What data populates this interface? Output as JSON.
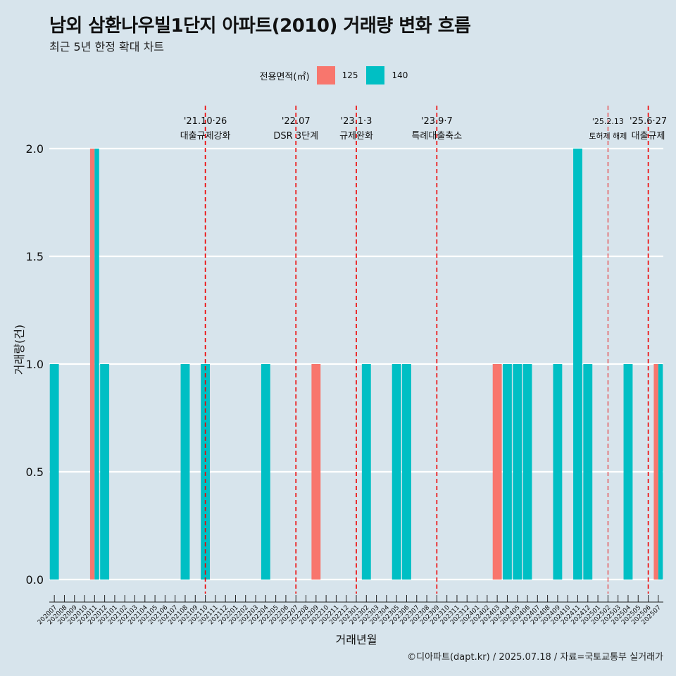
{
  "title": "남외 삼환나우빌1단지 아파트(2010) 거래량 변화 흐름",
  "subtitle": "최근 5년 한정 확대 차트",
  "caption": "©디아파트(dapt.kr) / 2025.07.18 / 자료=국토교통부 실거래가",
  "legend": {
    "title": "전용면적(㎡)",
    "items": [
      {
        "label": "125",
        "color": "#f8766d"
      },
      {
        "label": "140",
        "color": "#00bfc4"
      }
    ]
  },
  "chart_data": {
    "type": "bar",
    "title": "남외 삼환나우빌1단지 아파트(2010) 거래량 변화 흐름",
    "subtitle": "최근 5년 한정 확대 차트",
    "xlabel": "거래년월",
    "ylabel": "거래량(건)",
    "ylim": [
      0,
      2.0
    ],
    "yticks": [
      0.0,
      0.5,
      1.0,
      1.5,
      2.0
    ],
    "grid": "horizontal",
    "legend_position": "top",
    "categories": [
      "202007",
      "202008",
      "202009",
      "202010",
      "202011",
      "202012",
      "202101",
      "202102",
      "202103",
      "202104",
      "202105",
      "202106",
      "202107",
      "202108",
      "202109",
      "202110",
      "202111",
      "202112",
      "202201",
      "202202",
      "202203",
      "202204",
      "202205",
      "202206",
      "202207",
      "202208",
      "202209",
      "202210",
      "202211",
      "202212",
      "202301",
      "202302",
      "202303",
      "202304",
      "202305",
      "202306",
      "202307",
      "202308",
      "202309",
      "202310",
      "202311",
      "202312",
      "202401",
      "202402",
      "202403",
      "202404",
      "202405",
      "202406",
      "202407",
      "202408",
      "202409",
      "202410",
      "202411",
      "202412",
      "202501",
      "202502",
      "202503",
      "202504",
      "202505",
      "202506",
      "202507"
    ],
    "series": [
      {
        "name": "125",
        "color": "#f8766d",
        "points": [
          {
            "x": "202011",
            "y": 2
          },
          {
            "x": "202209",
            "y": 1
          },
          {
            "x": "202403",
            "y": 1
          },
          {
            "x": "202507",
            "y": 1
          }
        ]
      },
      {
        "name": "140",
        "color": "#00bfc4",
        "points": [
          {
            "x": "202007",
            "y": 1
          },
          {
            "x": "202011",
            "y": 2
          },
          {
            "x": "202012",
            "y": 1
          },
          {
            "x": "202108",
            "y": 1
          },
          {
            "x": "202110",
            "y": 1
          },
          {
            "x": "202204",
            "y": 1
          },
          {
            "x": "202302",
            "y": 1
          },
          {
            "x": "202305",
            "y": 1
          },
          {
            "x": "202306",
            "y": 1
          },
          {
            "x": "202404",
            "y": 1
          },
          {
            "x": "202405",
            "y": 1
          },
          {
            "x": "202406",
            "y": 1
          },
          {
            "x": "202409",
            "y": 1
          },
          {
            "x": "202411",
            "y": 2
          },
          {
            "x": "202412",
            "y": 1
          },
          {
            "x": "202504",
            "y": 1
          },
          {
            "x": "202507",
            "y": 1
          }
        ]
      }
    ],
    "annotations": [
      {
        "x": "202110",
        "line1": "'21.10·26",
        "line2": "대출규제강화"
      },
      {
        "x": "202207",
        "line1": "'22.07",
        "line2": "DSR 3단계"
      },
      {
        "x": "202301",
        "line1": "'23.1·3",
        "line2": "규제완화"
      },
      {
        "x": "202309",
        "line1": "'23.9·7",
        "line2": "특례대출축소"
      },
      {
        "x": "202502",
        "line1": "'25.2.13",
        "line2": "토허제 해제",
        "thin": true
      },
      {
        "x": "202506",
        "line1": "'25.6·27",
        "line2": "대출규제"
      }
    ]
  }
}
